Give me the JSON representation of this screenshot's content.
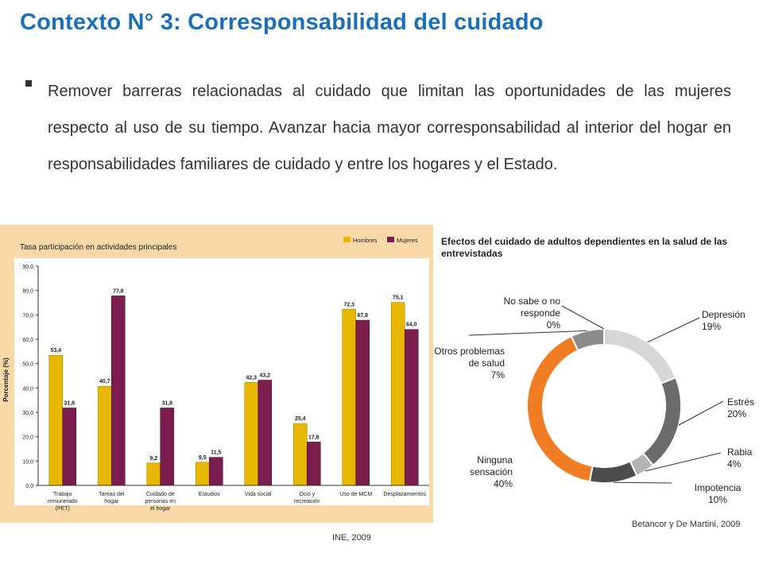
{
  "slide": {
    "title": "Contexto N° 3: Corresponsabilidad del cuidado",
    "bullet": "Remover barreras relacionadas al cuidado que limitan las oportunidades de las mujeres respecto al uso de su tiempo. Avanzar hacia mayor corresponsabilidad al interior del hogar en responsabilidades familiares de cuidado  y entre los hogares y el Estado.",
    "source_left": "INE, 2009",
    "source_right": "Betancor y De Martini, 2009"
  },
  "chart_data": [
    {
      "type": "bar",
      "title": "Tasa participación en actividades principales",
      "ylabel": "Porcentaje (%)",
      "xlabel": "",
      "ylim": [
        0,
        90
      ],
      "yticks": [
        "0,0",
        "10,0",
        "20,0",
        "30,0",
        "40,0",
        "50,0",
        "60,0",
        "70,0",
        "80,0",
        "90,0"
      ],
      "categories": [
        "Trabajo remunerado (PET)",
        "Tareas del hogar",
        "Cuidado de personas en el hogar",
        "Estudios",
        "Vida social",
        "Ocio y recreación",
        "Uso de MCM",
        "Desplazamientos"
      ],
      "series": [
        {
          "name": "Hombres",
          "color": "#e8b800",
          "values": [
            53.4,
            40.7,
            9.2,
            9.5,
            42.3,
            25.4,
            72.3,
            75.1
          ],
          "labels": [
            "53,4",
            "40,7",
            "9,2",
            "9,5",
            "42,3",
            "25,4",
            "72,3",
            "75,1"
          ]
        },
        {
          "name": "Mujeres",
          "color": "#7b1e4f",
          "values": [
            31.8,
            77.8,
            31.8,
            11.5,
            43.2,
            17.8,
            67.8,
            64.0
          ],
          "labels": [
            "31,8",
            "77,8",
            "31,8",
            "11,5",
            "43,2",
            "17,8",
            "67,8",
            "64,0"
          ]
        }
      ],
      "grid": false,
      "legend": "top-right",
      "background": "#f9d9a8"
    },
    {
      "type": "pie",
      "title": "Efectos del cuidado de adultos dependientes en la salud de las entrevistadas",
      "slices": [
        {
          "label": "Depresión",
          "value": 19,
          "text": "19%",
          "color": "#d6d6d6"
        },
        {
          "label": "Estrés",
          "value": 20,
          "text": "20%",
          "color": "#6b6b6b"
        },
        {
          "label": "Rabia",
          "value": 4,
          "text": "4%",
          "color": "#b3b3b3"
        },
        {
          "label": "Impotencia",
          "value": 10,
          "text": "10%",
          "color": "#4d4d4d"
        },
        {
          "label": "Ninguna sensación",
          "value": 40,
          "text": "40%",
          "color": "#f07d24"
        },
        {
          "label": "Otros problemas de salud",
          "value": 7,
          "text": "7%",
          "color": "#8c8c8c"
        },
        {
          "label": "No sabe o no responde",
          "value": 0,
          "text": "0%",
          "color": "#c8c8c8"
        }
      ],
      "donut": true
    }
  ]
}
